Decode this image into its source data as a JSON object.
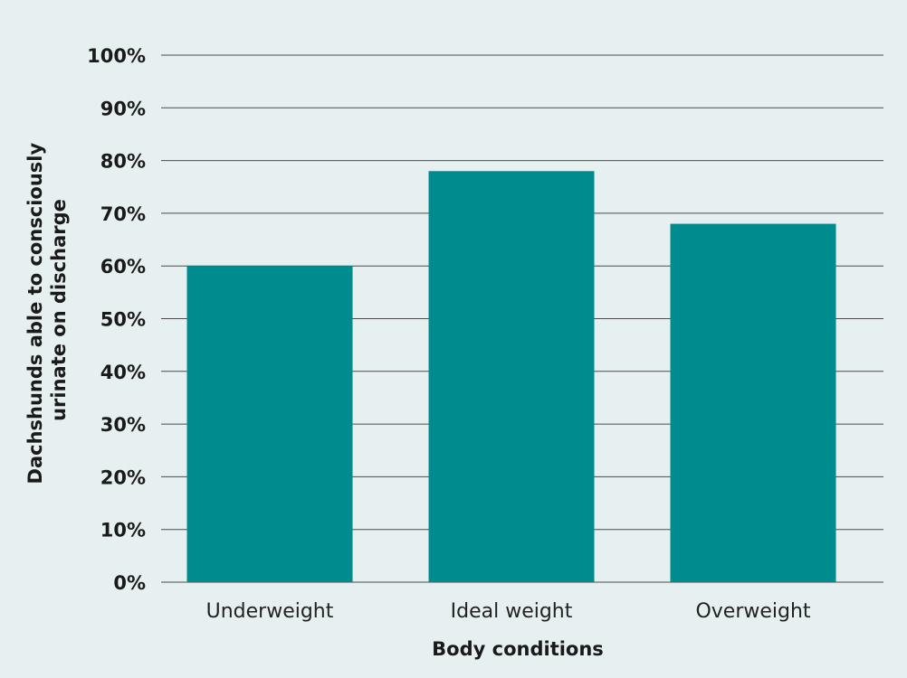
{
  "chart_data": {
    "type": "bar",
    "categories": [
      "Underweight",
      "Ideal weight",
      "Overweight"
    ],
    "values": [
      60,
      78,
      68
    ],
    "xlabel": "Body conditions",
    "ylabel_lines": [
      "Dachshunds able to consciously",
      "urinate on discharge"
    ],
    "ylim": [
      0,
      100
    ],
    "yticks": [
      0,
      10,
      20,
      30,
      40,
      50,
      60,
      70,
      80,
      90,
      100
    ],
    "ytick_labels": [
      "0%",
      "10%",
      "20%",
      "30%",
      "40%",
      "50%",
      "60%",
      "70%",
      "80%",
      "90%",
      "100%"
    ],
    "grid": true,
    "bar_color": "#008c8f",
    "background_color": "#e6f0f1"
  }
}
